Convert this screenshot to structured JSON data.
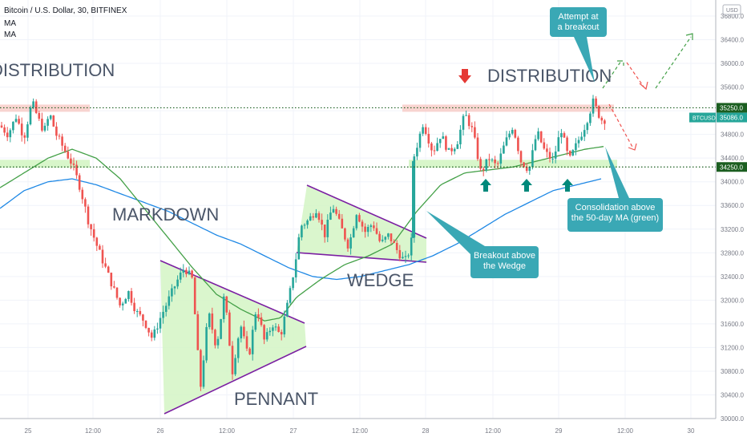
{
  "header": {
    "title": "Bitcoin / U.S. Dollar, 30, BITFINEX",
    "ma_label_1": "MA",
    "ma_label_2": "MA"
  },
  "currency_badge": "USD",
  "colors": {
    "up": "#26a69a",
    "down": "#ef5350",
    "ma_fast": "#43a047",
    "ma_slow": "#1e88e5",
    "shape_fill": "#d4f5c4",
    "trend_line": "#7b1fa2",
    "annotation_bg": "#3aa8b5",
    "level_line": "#1b5e20",
    "resistance_zone": "#f8c9c4",
    "support_zone": "#d4f5c4"
  },
  "chart_data": {
    "type": "candlestick",
    "title": "Bitcoin / U.S. Dollar, 30, BITFINEX",
    "y_axis": {
      "min": 29900,
      "max": 36800,
      "ticks": [
        30000,
        30400,
        30800,
        31200,
        31600,
        32000,
        32400,
        32800,
        33200,
        33600,
        34000,
        34400,
        34800,
        35200,
        35600,
        36000,
        36400,
        36800
      ]
    },
    "x_axis": {
      "labels": [
        "25",
        "12:00",
        "26",
        "12:00",
        "27",
        "12:00",
        "28",
        "12:00",
        "29",
        "12:00",
        "30"
      ]
    },
    "price_labels": {
      "resistance": "35250.0",
      "last": "35086.0",
      "symbol": "BTCUSD",
      "support": "34250.0"
    },
    "levels": {
      "resistance": 35250,
      "support": 34250,
      "last": 35086
    },
    "path_points": [
      [
        0,
        34950
      ],
      [
        10,
        34800
      ],
      [
        20,
        35100
      ],
      [
        30,
        34750
      ],
      [
        40,
        35350
      ],
      [
        48,
        35050
      ],
      [
        55,
        34850
      ],
      [
        62,
        35150
      ],
      [
        70,
        34800
      ],
      [
        80,
        34550
      ],
      [
        90,
        34300
      ],
      [
        100,
        33900
      ],
      [
        110,
        33350
      ],
      [
        120,
        32950
      ],
      [
        130,
        32600
      ],
      [
        140,
        32250
      ],
      [
        150,
        31900
      ],
      [
        160,
        32150
      ],
      [
        170,
        31800
      ],
      [
        180,
        31650
      ],
      [
        190,
        31350
      ],
      [
        200,
        31700
      ],
      [
        210,
        32000
      ],
      [
        220,
        32300
      ],
      [
        230,
        32550
      ],
      [
        240,
        32350
      ],
      [
        250,
        30500
      ],
      [
        260,
        31800
      ],
      [
        270,
        31200
      ],
      [
        280,
        32100
      ],
      [
        290,
        30800
      ],
      [
        300,
        31600
      ],
      [
        310,
        31000
      ],
      [
        320,
        31900
      ],
      [
        330,
        31300
      ],
      [
        340,
        31600
      ],
      [
        350,
        31400
      ],
      [
        360,
        32000
      ],
      [
        368,
        32600
      ],
      [
        375,
        33250
      ],
      [
        385,
        33350
      ],
      [
        395,
        33550
      ],
      [
        405,
        33100
      ],
      [
        415,
        33600
      ],
      [
        425,
        33250
      ],
      [
        435,
        32900
      ],
      [
        445,
        33500
      ],
      [
        455,
        33150
      ],
      [
        465,
        33300
      ],
      [
        475,
        32950
      ],
      [
        485,
        33100
      ],
      [
        495,
        32850
      ],
      [
        505,
        32650
      ],
      [
        513,
        32900
      ],
      [
        516,
        34400
      ],
      [
        520,
        34600
      ],
      [
        528,
        35000
      ],
      [
        540,
        34500
      ],
      [
        550,
        34800
      ],
      [
        560,
        34500
      ],
      [
        570,
        34650
      ],
      [
        580,
        35150
      ],
      [
        590,
        34850
      ],
      [
        600,
        34150
      ],
      [
        610,
        34400
      ],
      [
        620,
        34250
      ],
      [
        630,
        34650
      ],
      [
        640,
        34950
      ],
      [
        650,
        34350
      ],
      [
        660,
        34200
      ],
      [
        670,
        34850
      ],
      [
        680,
        34500
      ],
      [
        690,
        34350
      ],
      [
        700,
        34900
      ],
      [
        710,
        34350
      ],
      [
        720,
        34650
      ],
      [
        730,
        34950
      ],
      [
        740,
        35350
      ],
      [
        750,
        35050
      ],
      [
        758,
        35050
      ]
    ],
    "ma_fast": [
      [
        0,
        33900
      ],
      [
        30,
        34150
      ],
      [
        60,
        34400
      ],
      [
        90,
        34550
      ],
      [
        120,
        34400
      ],
      [
        150,
        34050
      ],
      [
        180,
        33550
      ],
      [
        210,
        33050
      ],
      [
        240,
        32550
      ],
      [
        270,
        32100
      ],
      [
        300,
        31850
      ],
      [
        330,
        31650
      ],
      [
        350,
        31700
      ],
      [
        370,
        32050
      ],
      [
        400,
        32350
      ],
      [
        430,
        32600
      ],
      [
        460,
        32750
      ],
      [
        490,
        32950
      ],
      [
        520,
        33500
      ],
      [
        550,
        33950
      ],
      [
        580,
        34150
      ],
      [
        610,
        34200
      ],
      [
        640,
        34250
      ],
      [
        670,
        34350
      ],
      [
        700,
        34450
      ],
      [
        730,
        34550
      ],
      [
        755,
        34600
      ]
    ],
    "ma_slow": [
      [
        0,
        33550
      ],
      [
        30,
        33850
      ],
      [
        60,
        34000
      ],
      [
        90,
        34050
      ],
      [
        120,
        33950
      ],
      [
        150,
        33800
      ],
      [
        180,
        33650
      ],
      [
        210,
        33500
      ],
      [
        240,
        33300
      ],
      [
        270,
        33100
      ],
      [
        300,
        32950
      ],
      [
        330,
        32750
      ],
      [
        360,
        32550
      ],
      [
        390,
        32400
      ],
      [
        420,
        32350
      ],
      [
        450,
        32400
      ],
      [
        480,
        32500
      ],
      [
        510,
        32600
      ],
      [
        540,
        32750
      ],
      [
        570,
        32950
      ],
      [
        600,
        33200
      ],
      [
        630,
        33450
      ],
      [
        660,
        33650
      ],
      [
        690,
        33850
      ],
      [
        720,
        33950
      ],
      [
        750,
        34050
      ]
    ],
    "annotations": {
      "distribution_left": "DISTRIBUTION",
      "distribution_right": "DISTRIBUTION",
      "markdown": "MARKDOWN",
      "wedge": "WEDGE",
      "pennant": "PENNANT",
      "callout_breakout_wedge": [
        "Breakout above",
        "the Wedge"
      ],
      "callout_attempt": [
        "Attempt at",
        "a breakout"
      ],
      "callout_consolidation": [
        "Consolidation above",
        "the 50-day MA (green)"
      ]
    }
  }
}
